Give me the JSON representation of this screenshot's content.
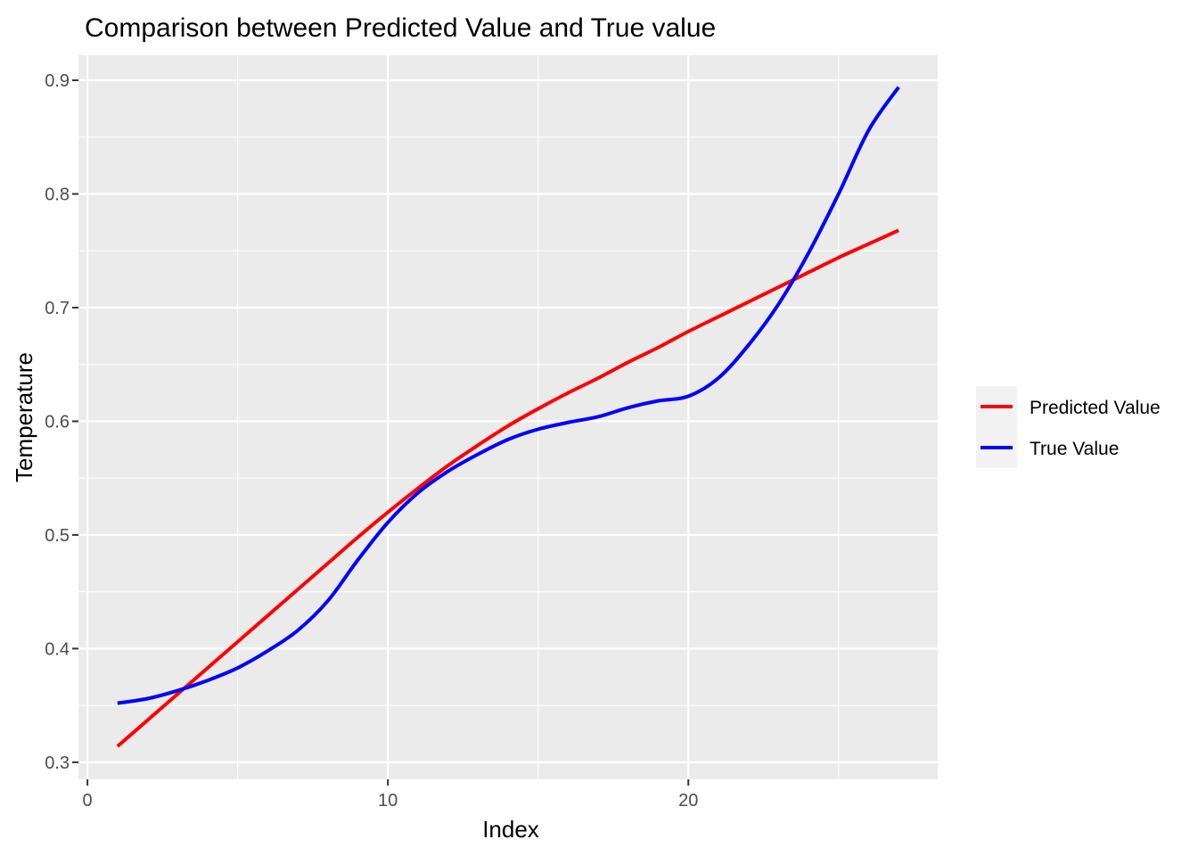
{
  "chart_data": {
    "type": "line",
    "title": "Comparison between Predicted Value and True value",
    "xlabel": "Index",
    "ylabel": "Temperature",
    "xlim": [
      -0.3,
      28.3
    ],
    "ylim": [
      0.285,
      0.922
    ],
    "x_ticks": [
      0,
      10,
      20
    ],
    "x_tick_labels": [
      "0",
      "10",
      "20"
    ],
    "y_ticks": [
      0.3,
      0.4,
      0.5,
      0.6,
      0.7,
      0.8,
      0.9
    ],
    "y_tick_labels": [
      "0.3",
      "0.4",
      "0.5",
      "0.6",
      "0.7",
      "0.8",
      "0.9"
    ],
    "grid": true,
    "legend_position": "right",
    "series": [
      {
        "name": "Predicted Value",
        "color": "#ff0000",
        "points": [
          [
            1,
            0.314
          ],
          [
            2,
            0.337
          ],
          [
            3,
            0.36
          ],
          [
            4,
            0.383
          ],
          [
            5,
            0.406
          ],
          [
            6,
            0.429
          ],
          [
            7,
            0.452
          ],
          [
            8,
            0.475
          ],
          [
            9,
            0.498
          ],
          [
            10,
            0.52
          ],
          [
            11,
            0.541
          ],
          [
            12,
            0.561
          ],
          [
            13,
            0.579
          ],
          [
            14,
            0.596
          ],
          [
            15,
            0.611
          ],
          [
            16,
            0.625
          ],
          [
            17,
            0.638
          ],
          [
            18,
            0.652
          ],
          [
            19,
            0.665
          ],
          [
            20,
            0.679
          ],
          [
            21,
            0.692
          ],
          [
            22,
            0.705
          ],
          [
            23,
            0.718
          ],
          [
            24,
            0.731
          ],
          [
            25,
            0.744
          ],
          [
            26,
            0.756
          ],
          [
            27,
            0.768
          ]
        ]
      },
      {
        "name": "True Value",
        "color": "#0000ff",
        "points": [
          [
            1,
            0.352
          ],
          [
            2,
            0.356
          ],
          [
            3,
            0.363
          ],
          [
            4,
            0.372
          ],
          [
            5,
            0.383
          ],
          [
            6,
            0.398
          ],
          [
            7,
            0.416
          ],
          [
            8,
            0.442
          ],
          [
            9,
            0.478
          ],
          [
            10,
            0.511
          ],
          [
            11,
            0.537
          ],
          [
            12,
            0.556
          ],
          [
            13,
            0.571
          ],
          [
            14,
            0.584
          ],
          [
            15,
            0.593
          ],
          [
            16,
            0.599
          ],
          [
            17,
            0.604
          ],
          [
            18,
            0.612
          ],
          [
            19,
            0.618
          ],
          [
            20,
            0.622
          ],
          [
            21,
            0.638
          ],
          [
            22,
            0.667
          ],
          [
            23,
            0.703
          ],
          [
            24,
            0.748
          ],
          [
            25,
            0.8
          ],
          [
            26,
            0.856
          ],
          [
            27,
            0.894
          ]
        ]
      }
    ]
  }
}
